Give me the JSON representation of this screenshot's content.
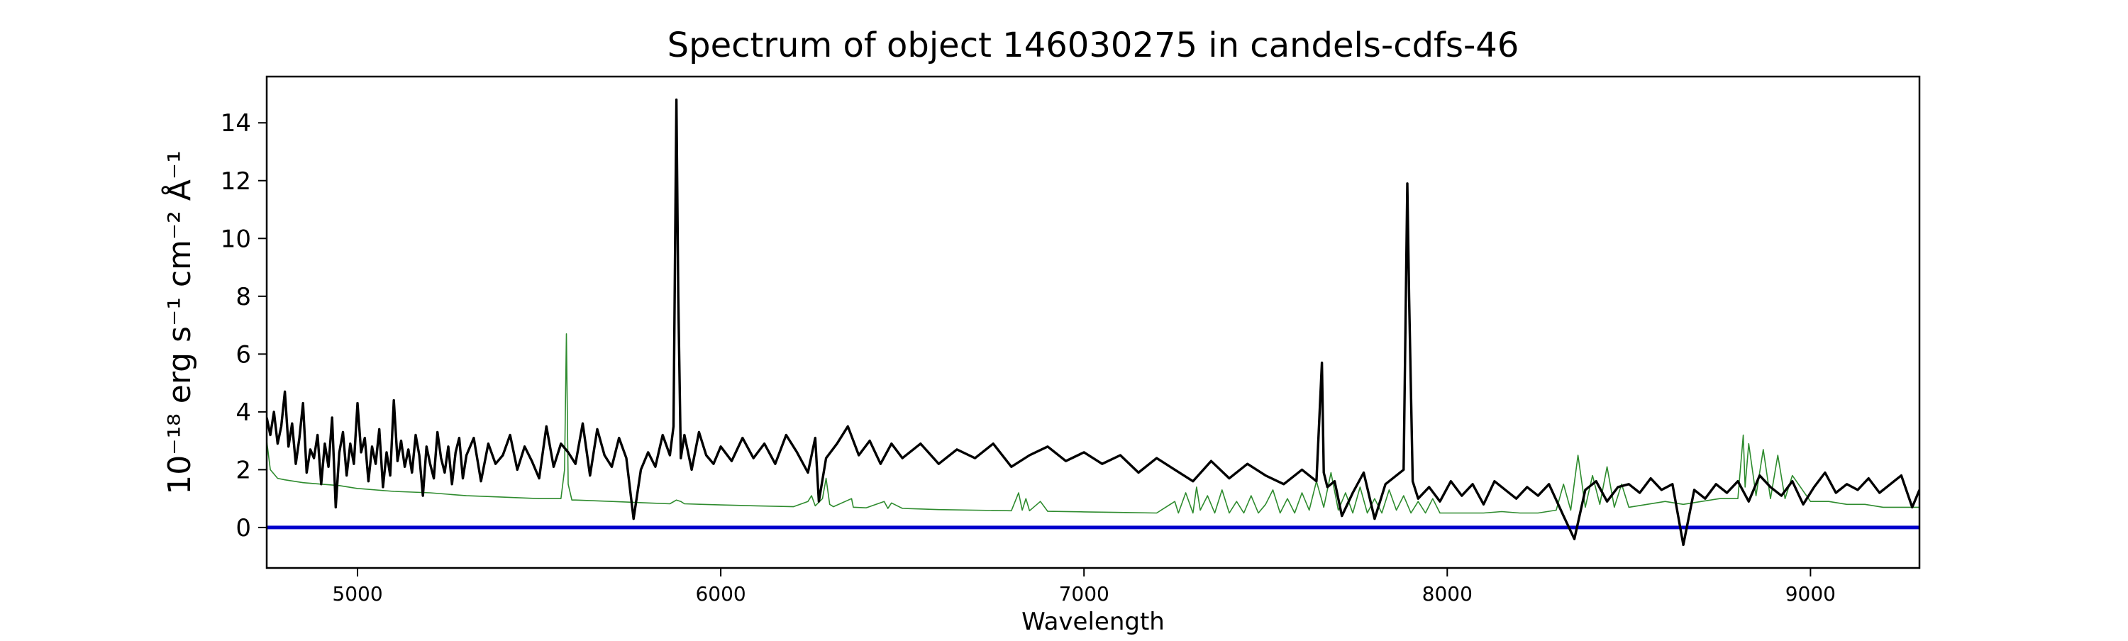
{
  "chart_data": {
    "type": "line",
    "title": "Spectrum of object 146030275 in candels-cdfs-46",
    "xlabel": "Wavelength",
    "ylabel": "10⁻¹⁸ erg s⁻¹ cm⁻² Å⁻¹",
    "xlim": [
      4750,
      9300
    ],
    "ylim": [
      -1.4,
      15.6
    ],
    "xticks": [
      5000,
      6000,
      7000,
      8000,
      9000
    ],
    "yticks": [
      0,
      2,
      4,
      6,
      8,
      10,
      12,
      14
    ],
    "grid": false,
    "legend": false,
    "series": [
      {
        "color": "#000000",
        "role": "flux",
        "x": [
          4750,
          4760,
          4770,
          4780,
          4790,
          4800,
          4810,
          4820,
          4830,
          4840,
          4850,
          4860,
          4870,
          4880,
          4890,
          4900,
          4910,
          4920,
          4930,
          4940,
          4950,
          4960,
          4970,
          4980,
          4990,
          5000,
          5010,
          5020,
          5030,
          5040,
          5050,
          5060,
          5070,
          5080,
          5090,
          5100,
          5110,
          5120,
          5130,
          5140,
          5150,
          5160,
          5170,
          5180,
          5190,
          5200,
          5210,
          5220,
          5230,
          5240,
          5250,
          5260,
          5270,
          5280,
          5290,
          5300,
          5320,
          5340,
          5360,
          5380,
          5400,
          5420,
          5440,
          5460,
          5480,
          5500,
          5520,
          5540,
          5560,
          5580,
          5600,
          5620,
          5640,
          5660,
          5680,
          5700,
          5720,
          5740,
          5760,
          5780,
          5800,
          5820,
          5840,
          5860,
          5870,
          5878,
          5883,
          5890,
          5900,
          5920,
          5940,
          5960,
          5980,
          6000,
          6030,
          6060,
          6090,
          6120,
          6150,
          6180,
          6210,
          6240,
          6260,
          6270,
          6290,
          6320,
          6350,
          6380,
          6410,
          6440,
          6470,
          6500,
          6550,
          6600,
          6650,
          6700,
          6750,
          6800,
          6850,
          6900,
          6950,
          7000,
          7050,
          7100,
          7150,
          7200,
          7250,
          7300,
          7350,
          7400,
          7450,
          7500,
          7550,
          7600,
          7640,
          7655,
          7660,
          7670,
          7690,
          7710,
          7740,
          7770,
          7800,
          7830,
          7860,
          7880,
          7890,
          7895,
          7905,
          7920,
          7950,
          7980,
          8010,
          8040,
          8070,
          8100,
          8130,
          8160,
          8190,
          8220,
          8250,
          8280,
          8320,
          8350,
          8380,
          8410,
          8440,
          8470,
          8500,
          8530,
          8560,
          8590,
          8620,
          8650,
          8680,
          8710,
          8740,
          8770,
          8800,
          8830,
          8860,
          8890,
          8920,
          8950,
          8980,
          9010,
          9040,
          9070,
          9100,
          9130,
          9160,
          9190,
          9220,
          9250,
          9280,
          9300
        ],
        "y": [
          3.8,
          3.2,
          4.0,
          2.9,
          3.5,
          4.7,
          2.8,
          3.6,
          2.2,
          3.1,
          4.3,
          1.9,
          2.7,
          2.4,
          3.2,
          1.5,
          2.9,
          2.1,
          3.8,
          0.7,
          2.6,
          3.3,
          1.8,
          2.9,
          2.2,
          4.3,
          2.6,
          3.1,
          1.6,
          2.8,
          2.2,
          3.4,
          1.4,
          2.6,
          1.8,
          4.4,
          2.3,
          3.0,
          2.1,
          2.7,
          1.9,
          3.2,
          2.5,
          1.1,
          2.8,
          2.2,
          1.7,
          3.3,
          2.4,
          1.9,
          2.8,
          1.5,
          2.6,
          3.1,
          1.7,
          2.5,
          3.1,
          1.6,
          2.9,
          2.2,
          2.5,
          3.2,
          2.0,
          2.8,
          2.3,
          1.7,
          3.5,
          2.1,
          2.9,
          2.6,
          2.2,
          3.6,
          1.8,
          3.4,
          2.5,
          2.1,
          3.1,
          2.4,
          0.3,
          2.0,
          2.6,
          2.1,
          3.2,
          2.5,
          3.5,
          14.8,
          8.0,
          2.4,
          3.2,
          2.0,
          3.3,
          2.5,
          2.2,
          2.8,
          2.3,
          3.1,
          2.4,
          2.9,
          2.2,
          3.2,
          2.6,
          1.9,
          3.1,
          0.9,
          2.4,
          2.9,
          3.5,
          2.5,
          3.0,
          2.2,
          2.9,
          2.4,
          2.9,
          2.2,
          2.7,
          2.4,
          2.9,
          2.1,
          2.5,
          2.8,
          2.3,
          2.6,
          2.2,
          2.5,
          1.9,
          2.4,
          2.0,
          1.6,
          2.3,
          1.7,
          2.2,
          1.8,
          1.5,
          2.0,
          1.6,
          5.7,
          1.9,
          1.4,
          1.6,
          0.4,
          1.2,
          1.9,
          0.3,
          1.5,
          1.8,
          2.0,
          11.9,
          8.0,
          1.6,
          1.0,
          1.4,
          0.9,
          1.6,
          1.1,
          1.5,
          0.8,
          1.6,
          1.3,
          1.0,
          1.4,
          1.1,
          1.5,
          0.4,
          -0.4,
          1.3,
          1.6,
          0.9,
          1.4,
          1.5,
          1.2,
          1.7,
          1.3,
          1.5,
          -0.6,
          1.3,
          1.0,
          1.5,
          1.2,
          1.6,
          0.9,
          1.8,
          1.4,
          1.1,
          1.6,
          0.8,
          1.4,
          1.9,
          1.2,
          1.5,
          1.3,
          1.7,
          1.2,
          1.5,
          1.8,
          0.7,
          1.3
        ]
      },
      {
        "color": "#2e8b2e",
        "role": "model",
        "x": [
          4750,
          4760,
          4780,
          4800,
          4850,
          4900,
          4950,
          5000,
          5100,
          5200,
          5300,
          5400,
          5500,
          5560,
          5570,
          5575,
          5580,
          5590,
          5600,
          5700,
          5800,
          5860,
          5878,
          5890,
          5900,
          5950,
          6000,
          6100,
          6200,
          6240,
          6250,
          6260,
          6280,
          6290,
          6300,
          6310,
          6360,
          6365,
          6370,
          6400,
          6450,
          6460,
          6470,
          6500,
          6550,
          6600,
          6700,
          6800,
          6820,
          6830,
          6840,
          6850,
          6880,
          6900,
          7000,
          7100,
          7200,
          7250,
          7260,
          7280,
          7300,
          7310,
          7320,
          7340,
          7360,
          7380,
          7400,
          7420,
          7440,
          7460,
          7480,
          7500,
          7520,
          7540,
          7560,
          7580,
          7600,
          7620,
          7640,
          7660,
          7680,
          7700,
          7720,
          7740,
          7760,
          7780,
          7800,
          7820,
          7840,
          7860,
          7880,
          7900,
          7920,
          7940,
          7960,
          7980,
          8000,
          8050,
          8100,
          8150,
          8200,
          8250,
          8300,
          8320,
          8340,
          8360,
          8380,
          8400,
          8420,
          8440,
          8460,
          8480,
          8500,
          8550,
          8600,
          8650,
          8700,
          8750,
          8800,
          8815,
          8820,
          8830,
          8850,
          8870,
          8890,
          8910,
          8930,
          8950,
          9000,
          9050,
          9100,
          9150,
          9200,
          9250,
          9300
        ],
        "y": [
          3.0,
          2.0,
          1.7,
          1.65,
          1.55,
          1.5,
          1.45,
          1.35,
          1.25,
          1.2,
          1.1,
          1.05,
          1.0,
          1.0,
          2.0,
          6.7,
          1.5,
          0.95,
          0.95,
          0.9,
          0.85,
          0.82,
          0.95,
          0.9,
          0.82,
          0.8,
          0.78,
          0.75,
          0.72,
          0.9,
          1.1,
          0.75,
          1.0,
          1.7,
          0.8,
          0.72,
          1.0,
          0.7,
          0.7,
          0.68,
          0.9,
          0.66,
          0.85,
          0.66,
          0.64,
          0.62,
          0.6,
          0.58,
          1.2,
          0.6,
          1.0,
          0.58,
          0.9,
          0.56,
          0.54,
          0.52,
          0.5,
          0.9,
          0.5,
          1.2,
          0.5,
          1.4,
          0.6,
          1.1,
          0.5,
          1.3,
          0.5,
          0.9,
          0.5,
          1.1,
          0.5,
          0.8,
          1.3,
          0.5,
          1.0,
          0.5,
          1.2,
          0.6,
          1.6,
          0.7,
          1.9,
          0.6,
          1.2,
          0.5,
          1.4,
          0.5,
          1.0,
          0.5,
          1.3,
          0.6,
          1.1,
          0.5,
          0.9,
          0.5,
          1.0,
          0.5,
          0.5,
          0.5,
          0.5,
          0.55,
          0.5,
          0.5,
          0.6,
          1.5,
          0.6,
          2.5,
          0.7,
          1.8,
          0.8,
          2.1,
          0.7,
          1.5,
          0.7,
          0.8,
          0.9,
          0.8,
          0.9,
          1.0,
          1.0,
          3.2,
          1.4,
          2.9,
          1.1,
          2.7,
          1.0,
          2.5,
          1.0,
          1.8,
          0.9,
          0.9,
          0.8,
          0.8,
          0.7,
          0.7,
          0.7
        ]
      },
      {
        "color": "#0000cc",
        "role": "zero",
        "x": [
          4750,
          9300
        ],
        "y": [
          0,
          0
        ]
      }
    ]
  }
}
